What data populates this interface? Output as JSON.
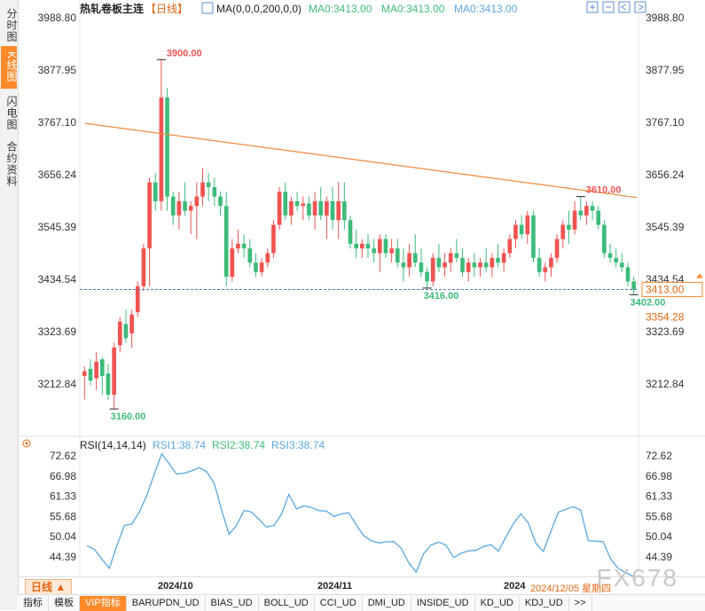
{
  "sidebar": {
    "tabs": [
      {
        "label": "分时图",
        "active": false
      },
      {
        "label": "K线图",
        "active": true
      },
      {
        "label": "闪电图",
        "active": false
      },
      {
        "label": "合约资料",
        "active": false
      }
    ]
  },
  "header": {
    "title": "热轧卷板主连",
    "period_tag": "【日线】",
    "ma_label": "MA(0,0,0,200,0,0)",
    "ma_values": [
      "MA0:3413.00",
      "MA0:3413.00",
      "MA0:3413.00"
    ]
  },
  "rsi_header": {
    "label": "RSI(14,14,14)",
    "values": [
      "RSI1:38.74",
      "RSI2:38.74",
      "RSI3:38.74"
    ]
  },
  "bottom": {
    "period_button": "日线",
    "x_labels": [
      "2024/10",
      "2024/11",
      "2024"
    ],
    "date_readout": "2024/12/05 星期四",
    "tabs": [
      "指标",
      "模板",
      "VIP指标",
      "BARUPDN_UD",
      "BIAS_UD",
      "BOLL_UD",
      "CCI_UD",
      "DMI_UD",
      "INSIDE_UD",
      "KD_UD",
      "KDJ_UD",
      ">>"
    ]
  },
  "watermark": "FX678",
  "colors": {
    "up": "#ef5350",
    "down": "#3dbb7a",
    "ma200": "#f08a3c",
    "rsi": "#5aa7e0",
    "accent": "#ff8a2b"
  },
  "chart_data": [
    {
      "type": "candlestick",
      "title": "热轧卷板主连",
      "yticks": [
        3988.8,
        3877.95,
        3767.1,
        3656.24,
        3545.39,
        3434.54,
        3323.69,
        3212.84
      ],
      "ytick_labels": [
        "3988.80",
        "3877.95",
        "3767.10",
        "3656.24",
        "3545.39",
        "3434.54",
        "3323.69",
        "3212.84"
      ],
      "ylim": [
        3140,
        4010
      ],
      "current_price_label": "3413.00",
      "current_price": 3413.0,
      "secondary_price_label": "3354.28",
      "annotations": [
        {
          "text": "3900.00",
          "index": 13,
          "value": 3900
        },
        {
          "text": "3160.00",
          "index": 5,
          "value": 3160
        },
        {
          "text": "3610.00",
          "index": 84,
          "value": 3610
        },
        {
          "text": "3416.00",
          "index": 58,
          "value": 3416
        },
        {
          "text": "3402.00",
          "index": 93,
          "value": 3402
        }
      ],
      "ohlc": [
        [
          3230,
          3250,
          3180,
          3240
        ],
        [
          3245,
          3265,
          3210,
          3220
        ],
        [
          3225,
          3280,
          3200,
          3260
        ],
        [
          3265,
          3270,
          3190,
          3230
        ],
        [
          3235,
          3255,
          3180,
          3190
        ],
        [
          3190,
          3300,
          3160,
          3290
        ],
        [
          3295,
          3355,
          3280,
          3345
        ],
        [
          3340,
          3370,
          3300,
          3310
        ],
        [
          3320,
          3370,
          3290,
          3360
        ],
        [
          3365,
          3430,
          3355,
          3420
        ],
        [
          3420,
          3510,
          3410,
          3500
        ],
        [
          3500,
          3650,
          3420,
          3640
        ],
        [
          3640,
          3660,
          3580,
          3600
        ],
        [
          3600,
          3900,
          3580,
          3820
        ],
        [
          3820,
          3840,
          3580,
          3610
        ],
        [
          3610,
          3620,
          3550,
          3570
        ],
        [
          3570,
          3620,
          3540,
          3600
        ],
        [
          3600,
          3640,
          3570,
          3580
        ],
        [
          3580,
          3600,
          3530,
          3590
        ],
        [
          3590,
          3640,
          3520,
          3610
        ],
        [
          3610,
          3670,
          3590,
          3640
        ],
        [
          3640,
          3660,
          3600,
          3630
        ],
        [
          3630,
          3650,
          3590,
          3610
        ],
        [
          3610,
          3620,
          3570,
          3590
        ],
        [
          3590,
          3620,
          3420,
          3440
        ],
        [
          3440,
          3520,
          3430,
          3500
        ],
        [
          3500,
          3540,
          3490,
          3510
        ],
        [
          3510,
          3530,
          3480,
          3500
        ],
        [
          3500,
          3520,
          3460,
          3470
        ],
        [
          3470,
          3490,
          3440,
          3450
        ],
        [
          3450,
          3480,
          3440,
          3470
        ],
        [
          3470,
          3500,
          3460,
          3490
        ],
        [
          3490,
          3560,
          3480,
          3550
        ],
        [
          3550,
          3630,
          3540,
          3620
        ],
        [
          3620,
          3640,
          3560,
          3570
        ],
        [
          3570,
          3610,
          3550,
          3600
        ],
        [
          3600,
          3620,
          3580,
          3590
        ],
        [
          3590,
          3610,
          3560,
          3595
        ],
        [
          3595,
          3610,
          3560,
          3570
        ],
        [
          3570,
          3620,
          3540,
          3600
        ],
        [
          3600,
          3630,
          3560,
          3570
        ],
        [
          3570,
          3610,
          3520,
          3600
        ],
        [
          3600,
          3630,
          3540,
          3560
        ],
        [
          3560,
          3640,
          3520,
          3600
        ],
        [
          3600,
          3640,
          3540,
          3560
        ],
        [
          3560,
          3570,
          3500,
          3510
        ],
        [
          3510,
          3540,
          3480,
          3500
        ],
        [
          3500,
          3520,
          3480,
          3510
        ],
        [
          3510,
          3530,
          3480,
          3500
        ],
        [
          3500,
          3520,
          3470,
          3490
        ],
        [
          3490,
          3530,
          3450,
          3520
        ],
        [
          3520,
          3530,
          3480,
          3490
        ],
        [
          3490,
          3520,
          3470,
          3500
        ],
        [
          3500,
          3520,
          3460,
          3470
        ],
        [
          3470,
          3500,
          3430,
          3460
        ],
        [
          3460,
          3510,
          3440,
          3490
        ],
        [
          3490,
          3530,
          3460,
          3470
        ],
        [
          3470,
          3500,
          3440,
          3450
        ],
        [
          3450,
          3460,
          3416,
          3430
        ],
        [
          3430,
          3490,
          3420,
          3480
        ],
        [
          3480,
          3510,
          3450,
          3460
        ],
        [
          3460,
          3490,
          3440,
          3470
        ],
        [
          3470,
          3500,
          3450,
          3490
        ],
        [
          3490,
          3520,
          3470,
          3480
        ],
        [
          3480,
          3500,
          3440,
          3450
        ],
        [
          3450,
          3480,
          3430,
          3470
        ],
        [
          3470,
          3490,
          3440,
          3460
        ],
        [
          3460,
          3480,
          3440,
          3470
        ],
        [
          3470,
          3500,
          3450,
          3460
        ],
        [
          3460,
          3490,
          3440,
          3480
        ],
        [
          3480,
          3510,
          3460,
          3470
        ],
        [
          3470,
          3500,
          3450,
          3490
        ],
        [
          3490,
          3530,
          3480,
          3520
        ],
        [
          3520,
          3560,
          3500,
          3550
        ],
        [
          3550,
          3570,
          3520,
          3530
        ],
        [
          3530,
          3580,
          3510,
          3570
        ],
        [
          3570,
          3580,
          3470,
          3480
        ],
        [
          3480,
          3500,
          3440,
          3450
        ],
        [
          3450,
          3470,
          3430,
          3460
        ],
        [
          3460,
          3490,
          3440,
          3480
        ],
        [
          3480,
          3530,
          3470,
          3520
        ],
        [
          3520,
          3560,
          3500,
          3550
        ],
        [
          3550,
          3580,
          3510,
          3540
        ],
        [
          3540,
          3600,
          3530,
          3580
        ],
        [
          3580,
          3610,
          3560,
          3570
        ],
        [
          3570,
          3600,
          3550,
          3590
        ],
        [
          3590,
          3600,
          3560,
          3580
        ],
        [
          3580,
          3590,
          3540,
          3550
        ],
        [
          3550,
          3560,
          3480,
          3490
        ],
        [
          3490,
          3510,
          3470,
          3480
        ],
        [
          3480,
          3500,
          3460,
          3470
        ],
        [
          3470,
          3490,
          3450,
          3460
        ],
        [
          3460,
          3470,
          3420,
          3430
        ],
        [
          3430,
          3440,
          3402,
          3413
        ]
      ],
      "ma200": {
        "start": 3765,
        "end": 3608
      }
    },
    {
      "type": "line",
      "title": "RSI(14,14,14)",
      "yticks": [
        72.62,
        66.98,
        61.33,
        55.68,
        50.04,
        44.39
      ],
      "ytick_labels": [
        "72.62",
        "66.98",
        "61.33",
        "55.68",
        "50.04",
        "44.39"
      ],
      "ylim": [
        40.0,
        75.0
      ],
      "series": [
        {
          "name": "RSI1",
          "values": [
            47.5,
            46.5,
            43.8,
            41.2,
            47.5,
            53.1,
            53.6,
            56.9,
            61.5,
            67.5,
            73.2,
            70.4,
            67.5,
            67.8,
            68.4,
            69.3,
            68.2,
            65.0,
            57.5,
            50.7,
            53.2,
            57.4,
            56.9,
            54.9,
            52.7,
            53.2,
            56.3,
            61.9,
            57.8,
            58.6,
            58.2,
            57.3,
            57.2,
            55.7,
            56.4,
            56.7,
            53.3,
            50.3,
            48.9,
            48.3,
            48.6,
            48.7,
            46.8,
            42.8,
            40.1,
            45.3,
            47.7,
            48.5,
            47.7,
            44.2,
            45.4,
            46.1,
            46.2,
            47.3,
            47.8,
            46.0,
            49.9,
            53.7,
            56.4,
            53.8,
            48.2,
            45.9,
            51.5,
            56.9,
            57.7,
            58.4,
            57.4,
            48.9,
            48.8,
            48.6,
            43.8,
            41.2,
            40.0,
            38.7
          ]
        }
      ]
    }
  ]
}
